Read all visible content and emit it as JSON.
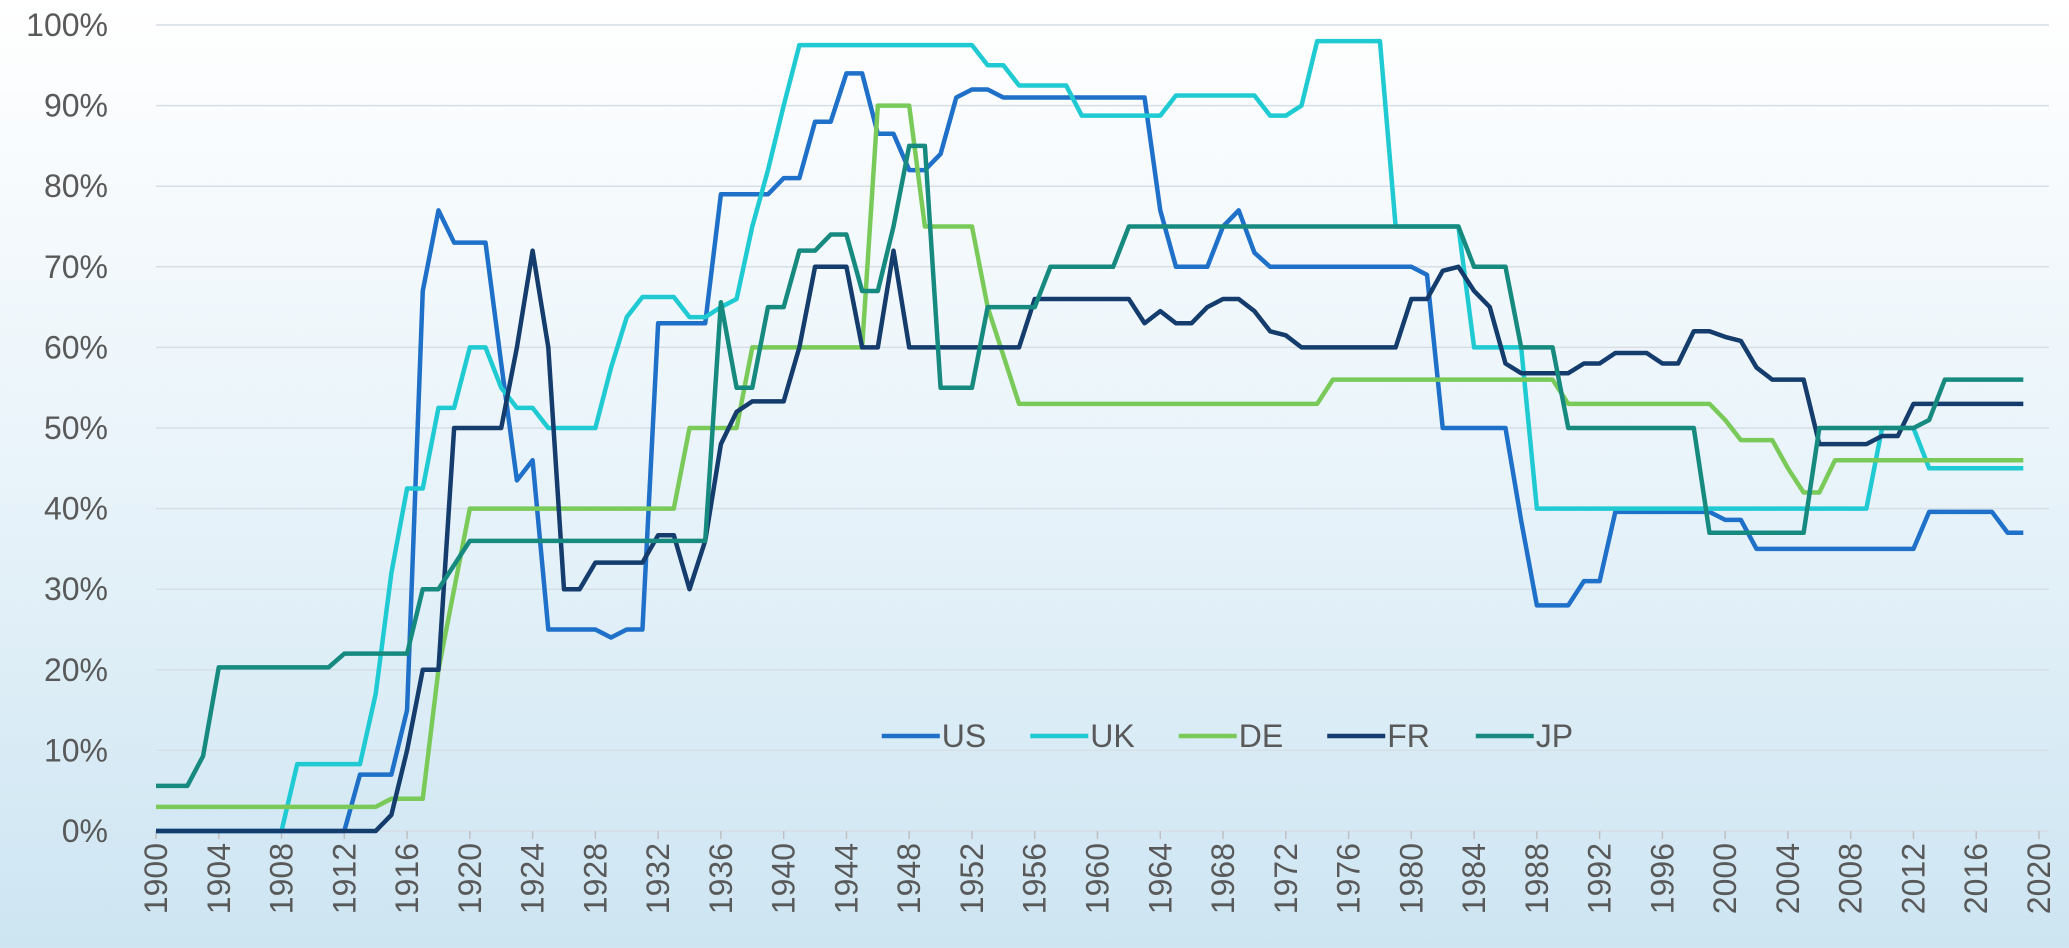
{
  "chart_data": {
    "type": "line",
    "x": [
      1900,
      1901,
      1902,
      1903,
      1904,
      1905,
      1906,
      1907,
      1908,
      1909,
      1910,
      1911,
      1912,
      1913,
      1914,
      1915,
      1916,
      1917,
      1918,
      1919,
      1920,
      1921,
      1922,
      1923,
      1924,
      1925,
      1926,
      1927,
      1928,
      1929,
      1930,
      1931,
      1932,
      1933,
      1934,
      1935,
      1936,
      1937,
      1938,
      1939,
      1940,
      1941,
      1942,
      1943,
      1944,
      1945,
      1946,
      1947,
      1948,
      1949,
      1950,
      1951,
      1952,
      1953,
      1954,
      1955,
      1956,
      1957,
      1958,
      1959,
      1960,
      1961,
      1962,
      1963,
      1964,
      1965,
      1966,
      1967,
      1968,
      1969,
      1970,
      1971,
      1972,
      1973,
      1974,
      1975,
      1976,
      1977,
      1978,
      1979,
      1980,
      1981,
      1982,
      1983,
      1984,
      1985,
      1986,
      1987,
      1988,
      1989,
      1990,
      1991,
      1992,
      1993,
      1994,
      1995,
      1996,
      1997,
      1998,
      1999,
      2000,
      2001,
      2002,
      2003,
      2004,
      2005,
      2006,
      2007,
      2008,
      2009,
      2010,
      2011,
      2012,
      2013,
      2014,
      2015,
      2016,
      2017,
      2018,
      2019
    ],
    "series": [
      {
        "name": "US",
        "color": "#1f70c8",
        "values": [
          0,
          0,
          0,
          0,
          0,
          0,
          0,
          0,
          0,
          0,
          0,
          0,
          0,
          7,
          7,
          7,
          15,
          67,
          77,
          73,
          73,
          73,
          58,
          43.5,
          46,
          25,
          25,
          25,
          25,
          24,
          25,
          25,
          63,
          63,
          63,
          63,
          79,
          79,
          79,
          79,
          81,
          81,
          88,
          88,
          94,
          94,
          86.5,
          86.5,
          82,
          82,
          84,
          91,
          92,
          92,
          91,
          91,
          91,
          91,
          91,
          91,
          91,
          91,
          91,
          91,
          77,
          70,
          70,
          70,
          75,
          77,
          71.75,
          70,
          70,
          70,
          70,
          70,
          70,
          70,
          70,
          70,
          70,
          69,
          50,
          50,
          50,
          50,
          50,
          38.5,
          28,
          28,
          28,
          31,
          31,
          39.6,
          39.6,
          39.6,
          39.6,
          39.6,
          39.6,
          39.6,
          38.6,
          38.6,
          35,
          35,
          35,
          35,
          35,
          35,
          35,
          35,
          35,
          35,
          35,
          39.6,
          39.6,
          39.6,
          39.6,
          39.6,
          37,
          37
        ]
      },
      {
        "name": "UK",
        "color": "#1fcad2",
        "values": [
          0,
          0,
          0,
          0,
          0,
          0,
          0,
          0,
          0,
          8.3,
          8.3,
          8.3,
          8.3,
          8.3,
          17,
          32,
          42.5,
          42.5,
          52.5,
          52.5,
          60,
          60,
          55,
          52.5,
          52.5,
          50,
          50,
          50,
          50,
          57.5,
          63.75,
          66.25,
          66.25,
          66.25,
          63.75,
          63.75,
          65,
          66,
          75,
          82,
          90,
          97.5,
          97.5,
          97.5,
          97.5,
          97.5,
          97.5,
          97.5,
          97.5,
          97.5,
          97.5,
          97.5,
          97.5,
          95,
          95,
          92.5,
          92.5,
          92.5,
          92.5,
          88.75,
          88.75,
          88.75,
          88.75,
          88.75,
          88.75,
          91.25,
          91.25,
          91.25,
          91.25,
          91.25,
          91.25,
          88.75,
          88.75,
          90,
          98,
          98,
          98,
          98,
          98,
          75,
          75,
          75,
          75,
          75,
          60,
          60,
          60,
          60,
          40,
          40,
          40,
          40,
          40,
          40,
          40,
          40,
          40,
          40,
          40,
          40,
          40,
          40,
          40,
          40,
          40,
          40,
          40,
          40,
          40,
          40,
          50,
          50,
          50,
          45,
          45,
          45,
          45,
          45,
          45,
          45
        ]
      },
      {
        "name": "DE",
        "color": "#7aca5a",
        "values": [
          3,
          3,
          3,
          3,
          3,
          3,
          3,
          3,
          3,
          3,
          3,
          3,
          3,
          3,
          3,
          4,
          4,
          4,
          20,
          30,
          40,
          40,
          40,
          40,
          40,
          40,
          40,
          40,
          40,
          40,
          40,
          40,
          40,
          40,
          50,
          50,
          50,
          50,
          60,
          60,
          60,
          60,
          60,
          60,
          60,
          60,
          90,
          90,
          90,
          75,
          75,
          75,
          75,
          65,
          59,
          53,
          53,
          53,
          53,
          53,
          53,
          53,
          53,
          53,
          53,
          53,
          53,
          53,
          53,
          53,
          53,
          53,
          53,
          53,
          53,
          56,
          56,
          56,
          56,
          56,
          56,
          56,
          56,
          56,
          56,
          56,
          56,
          56,
          56,
          56,
          53,
          53,
          53,
          53,
          53,
          53,
          53,
          53,
          53,
          53,
          51,
          48.5,
          48.5,
          48.5,
          45,
          42,
          42,
          46,
          46,
          46,
          46,
          46,
          46,
          46,
          46,
          46,
          46,
          46,
          46,
          46
        ]
      },
      {
        "name": "FR",
        "color": "#143c6c",
        "values": [
          0,
          0,
          0,
          0,
          0,
          0,
          0,
          0,
          0,
          0,
          0,
          0,
          0,
          0,
          0,
          2,
          10,
          20,
          20,
          50,
          50,
          50,
          50,
          60,
          72,
          60,
          30,
          30,
          33.3,
          33.3,
          33.3,
          33.3,
          36.7,
          36.7,
          30,
          36,
          48,
          52,
          53.3,
          53.3,
          53.3,
          60,
          70,
          70,
          70,
          60,
          60,
          72,
          60,
          60,
          60,
          60,
          60,
          60,
          60,
          60,
          66,
          66,
          66,
          66,
          66,
          66,
          66,
          63,
          64.5,
          63,
          63,
          65,
          66,
          66,
          64.5,
          62,
          61.5,
          60,
          60,
          60,
          60,
          60,
          60,
          60,
          66,
          66,
          69.5,
          70,
          67,
          65,
          58,
          56.8,
          56.8,
          56.8,
          56.8,
          58,
          58,
          59.3,
          59.3,
          59.3,
          58,
          58,
          62,
          62,
          61.3,
          60.8,
          57.5,
          56,
          56,
          56,
          48,
          48,
          48,
          48,
          49,
          49,
          53,
          53,
          53,
          53,
          53,
          53,
          53,
          53
        ]
      },
      {
        "name": "JP",
        "color": "#178a80",
        "values": [
          5.6,
          5.6,
          5.6,
          9.3,
          20.3,
          20.3,
          20.3,
          20.3,
          20.3,
          20.3,
          20.3,
          20.3,
          22,
          22,
          22,
          22,
          22,
          30,
          30,
          33,
          36,
          36,
          36,
          36,
          36,
          36,
          36,
          36,
          36,
          36,
          36,
          36,
          36,
          36,
          36,
          36,
          65.6,
          55,
          55,
          65,
          65,
          72,
          72,
          74,
          74,
          67,
          67,
          75,
          85,
          85,
          55,
          55,
          55,
          65,
          65,
          65,
          65,
          70,
          70,
          70,
          70,
          70,
          75,
          75,
          75,
          75,
          75,
          75,
          75,
          75,
          75,
          75,
          75,
          75,
          75,
          75,
          75,
          75,
          75,
          75,
          75,
          75,
          75,
          75,
          70,
          70,
          70,
          60,
          60,
          60,
          50,
          50,
          50,
          50,
          50,
          50,
          50,
          50,
          50,
          37,
          37,
          37,
          37,
          37,
          37,
          37,
          50,
          50,
          50,
          50,
          50,
          50,
          50,
          51,
          56,
          56,
          56,
          56,
          56,
          56
        ]
      }
    ],
    "xlim": [
      1900,
      2020
    ],
    "xticks": [
      1900,
      1904,
      1908,
      1912,
      1916,
      1920,
      1924,
      1928,
      1932,
      1936,
      1940,
      1944,
      1948,
      1952,
      1956,
      1960,
      1964,
      1968,
      1972,
      1976,
      1980,
      1984,
      1988,
      1992,
      1996,
      2000,
      2004,
      2008,
      2012,
      2016,
      2020
    ],
    "ylim": [
      0,
      100
    ],
    "yticks": [
      {
        "value": 0,
        "label": "0%"
      },
      {
        "value": 10,
        "label": "10%"
      },
      {
        "value": 20,
        "label": "20%"
      },
      {
        "value": 30,
        "label": "30%"
      },
      {
        "value": 40,
        "label": "40%"
      },
      {
        "value": 50,
        "label": "50%"
      },
      {
        "value": 60,
        "label": "60%"
      },
      {
        "value": 70,
        "label": "70%"
      },
      {
        "value": 80,
        "label": "80%"
      },
      {
        "value": 90,
        "label": "90%"
      },
      {
        "value": 100,
        "label": "100%"
      }
    ],
    "grid": true,
    "legend": "bottom-center-inside"
  }
}
